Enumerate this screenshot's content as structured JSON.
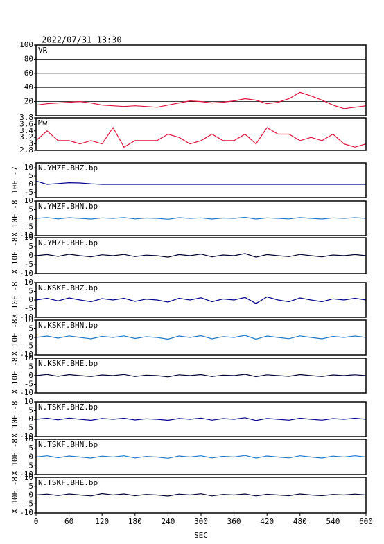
{
  "chart_data": [
    {
      "type": "line",
      "title": "2022/07/31 13:30",
      "label": "VR",
      "color": "#e0103c",
      "grid": true,
      "x": [
        0,
        20,
        40,
        60,
        80,
        100,
        120,
        140,
        160,
        180,
        200,
        220,
        240,
        260,
        280,
        300,
        320,
        340,
        360,
        380,
        400,
        420,
        440,
        460,
        480,
        500,
        520,
        540,
        560,
        580,
        600
      ],
      "values": [
        15,
        17,
        18,
        19,
        20,
        18,
        15,
        14,
        13,
        14,
        13,
        12,
        15,
        18,
        21,
        20,
        18,
        19,
        21,
        24,
        22,
        17,
        19,
        24,
        33,
        28,
        22,
        15,
        10,
        12,
        14
      ],
      "xlim": [
        0,
        600
      ],
      "ylim": [
        0,
        100
      ],
      "yticks": [
        20,
        40,
        60,
        80,
        100
      ]
    },
    {
      "type": "line",
      "label": "Mw",
      "color": "#e0103c",
      "grid": false,
      "x": [
        0,
        20,
        40,
        60,
        80,
        100,
        120,
        140,
        160,
        180,
        200,
        220,
        240,
        260,
        280,
        300,
        320,
        340,
        360,
        380,
        400,
        420,
        440,
        460,
        480,
        500,
        520,
        540,
        560,
        580,
        600
      ],
      "values": [
        3.1,
        3.4,
        3.1,
        3.1,
        3.0,
        3.1,
        3.0,
        3.5,
        2.9,
        3.1,
        3.1,
        3.1,
        3.3,
        3.2,
        3.0,
        3.1,
        3.3,
        3.1,
        3.1,
        3.3,
        3.0,
        3.5,
        3.3,
        3.3,
        3.1,
        3.2,
        3.1,
        3.3,
        3.0,
        2.9,
        3.0
      ],
      "xlim": [
        0,
        600
      ],
      "ylim": [
        2.8,
        3.8
      ],
      "yticks": [
        2.8,
        3.0,
        3.2,
        3.4,
        3.6,
        3.8
      ]
    },
    {
      "type": "line",
      "label": "N.YMZF.BHZ.bp",
      "ylabel": "10E -7",
      "color": "#00008b",
      "grid": false,
      "x": [
        0,
        20,
        40,
        60,
        80,
        100,
        120,
        140,
        160,
        180,
        200,
        220,
        240,
        260,
        280,
        300,
        320,
        340,
        360,
        380,
        400,
        420,
        440,
        460,
        480,
        500,
        520,
        540,
        560,
        580,
        600
      ],
      "values": [
        2,
        0,
        0.5,
        1,
        0.8,
        0.3,
        0,
        0,
        0,
        0,
        0,
        0,
        0,
        0,
        0,
        0,
        0,
        0,
        0,
        0,
        0,
        0,
        0,
        0,
        0,
        0,
        0,
        0,
        0,
        0,
        0
      ],
      "xlim": [
        0,
        600
      ],
      "ylim": [
        -8,
        13
      ],
      "yticks": [
        -5,
        0,
        5,
        10
      ]
    },
    {
      "type": "line",
      "label": "N.YMZF.BHN.bp",
      "ylabel": "X 10E -8",
      "color": "#1e78c8",
      "grid": false,
      "x": [
        0,
        20,
        40,
        60,
        80,
        100,
        120,
        140,
        160,
        180,
        200,
        220,
        240,
        260,
        280,
        300,
        320,
        340,
        360,
        380,
        400,
        420,
        440,
        460,
        480,
        500,
        520,
        540,
        560,
        580,
        600
      ],
      "values": [
        0,
        0.5,
        -0.3,
        0.4,
        0,
        -0.4,
        0.3,
        0,
        0.5,
        -0.3,
        0.2,
        0,
        -0.5,
        0.4,
        0,
        0.3,
        -0.4,
        0.2,
        0,
        0.6,
        -0.4,
        0.3,
        0,
        -0.3,
        0.5,
        0,
        -0.4,
        0.3,
        0,
        0.4,
        0
      ],
      "xlim": [
        0,
        600
      ],
      "ylim": [
        -10,
        10
      ],
      "yticks": [
        -10,
        -5,
        0,
        5,
        10
      ]
    },
    {
      "type": "line",
      "label": "N.YMZF.BHE.bp",
      "ylabel": "X 10E -8",
      "color": "#000033",
      "grid": false,
      "x": [
        0,
        20,
        40,
        60,
        80,
        100,
        120,
        140,
        160,
        180,
        200,
        220,
        240,
        260,
        280,
        300,
        320,
        340,
        360,
        380,
        400,
        420,
        440,
        460,
        480,
        500,
        520,
        540,
        560,
        580,
        600
      ],
      "values": [
        0,
        0.6,
        -0.4,
        0.8,
        0,
        -0.6,
        0.5,
        0,
        0.7,
        -0.5,
        0.3,
        0,
        -0.8,
        0.6,
        0,
        0.9,
        -0.6,
        0.4,
        0,
        1.2,
        -0.8,
        0.6,
        0,
        -0.5,
        0.7,
        0,
        -0.6,
        0.4,
        0,
        0.6,
        0
      ],
      "xlim": [
        0,
        600
      ],
      "ylim": [
        -10,
        10
      ],
      "yticks": [
        -10,
        -5,
        0,
        5,
        10
      ]
    },
    {
      "type": "line",
      "label": "N.KSKF.BHZ.bp",
      "ylabel": "X 10E -8",
      "color": "#00008b",
      "grid": false,
      "x": [
        0,
        20,
        40,
        60,
        80,
        100,
        120,
        140,
        160,
        180,
        200,
        220,
        240,
        260,
        280,
        300,
        320,
        340,
        360,
        380,
        400,
        420,
        440,
        460,
        480,
        500,
        520,
        540,
        560,
        580,
        600
      ],
      "values": [
        0,
        1,
        -0.5,
        1.2,
        0,
        -1,
        0.8,
        0,
        1,
        -0.8,
        0.5,
        0,
        -1.2,
        1,
        0,
        1.3,
        -1,
        0.6,
        0,
        1.5,
        -2,
        1.8,
        0,
        -1,
        1.2,
        0,
        -1,
        0.7,
        0,
        1,
        0
      ],
      "xlim": [
        0,
        600
      ],
      "ylim": [
        -10,
        10
      ],
      "yticks": [
        -10,
        -5,
        0,
        5,
        10
      ]
    },
    {
      "type": "line",
      "label": "N.KSKF.BHN.bp",
      "ylabel": "X 10E -8",
      "color": "#1e78c8",
      "grid": false,
      "x": [
        0,
        20,
        40,
        60,
        80,
        100,
        120,
        140,
        160,
        180,
        200,
        220,
        240,
        260,
        280,
        300,
        320,
        340,
        360,
        380,
        400,
        420,
        440,
        460,
        480,
        500,
        520,
        540,
        560,
        580,
        600
      ],
      "values": [
        0,
        0.8,
        -0.4,
        0.9,
        0,
        -0.8,
        0.6,
        0,
        0.9,
        -0.6,
        0.4,
        0,
        -1,
        0.8,
        0,
        1,
        -0.8,
        0.5,
        0,
        1.2,
        -1,
        0.8,
        0,
        -0.7,
        0.9,
        0,
        -0.8,
        0.6,
        0,
        0.8,
        0
      ],
      "xlim": [
        0,
        600
      ],
      "ylim": [
        -10,
        10
      ],
      "yticks": [
        -10,
        -5,
        0,
        5,
        10
      ]
    },
    {
      "type": "line",
      "label": "N.KSKF.BHE.bp",
      "ylabel": "X 10E -8",
      "color": "#000033",
      "grid": false,
      "x": [
        0,
        20,
        40,
        60,
        80,
        100,
        120,
        140,
        160,
        180,
        200,
        220,
        240,
        260,
        280,
        300,
        320,
        340,
        360,
        380,
        400,
        420,
        440,
        460,
        480,
        500,
        520,
        540,
        560,
        580,
        600
      ],
      "values": [
        0,
        0.7,
        -0.4,
        0.6,
        0,
        -0.5,
        0.4,
        0,
        0.7,
        -0.5,
        0.3,
        0,
        -0.7,
        0.5,
        0,
        0.6,
        -0.5,
        0.3,
        0,
        0.8,
        -0.6,
        0.5,
        0,
        -0.4,
        0.6,
        0,
        -0.5,
        0.4,
        0,
        0.5,
        0
      ],
      "xlim": [
        0,
        600
      ],
      "ylim": [
        -10,
        10
      ],
      "yticks": [
        -10,
        -5,
        0,
        5,
        10
      ]
    },
    {
      "type": "line",
      "label": "N.TSKF.BHZ.bp",
      "ylabel": "X 10E -8",
      "color": "#00008b",
      "grid": false,
      "x": [
        0,
        20,
        40,
        60,
        80,
        100,
        120,
        140,
        160,
        180,
        200,
        220,
        240,
        260,
        280,
        300,
        320,
        340,
        360,
        380,
        400,
        420,
        440,
        460,
        480,
        500,
        520,
        540,
        560,
        580,
        600
      ],
      "values": [
        0,
        0.6,
        -0.3,
        0.7,
        0,
        -0.6,
        0.5,
        0,
        0.6,
        -0.4,
        0.3,
        0,
        -0.6,
        0.5,
        0,
        0.7,
        -0.5,
        0.4,
        0,
        0.9,
        -0.7,
        0.5,
        0,
        -0.5,
        0.6,
        0,
        -0.5,
        0.4,
        0,
        0.6,
        0
      ],
      "xlim": [
        0,
        600
      ],
      "ylim": [
        -10,
        10
      ],
      "yticks": [
        -10,
        -5,
        0,
        5,
        10
      ]
    },
    {
      "type": "line",
      "label": "N.TSKF.BHN.bp",
      "ylabel": "X 10E -8",
      "color": "#1e78c8",
      "grid": false,
      "x": [
        0,
        20,
        40,
        60,
        80,
        100,
        120,
        140,
        160,
        180,
        200,
        220,
        240,
        260,
        280,
        300,
        320,
        340,
        360,
        380,
        400,
        420,
        440,
        460,
        480,
        500,
        520,
        540,
        560,
        580,
        600
      ],
      "values": [
        0,
        0.7,
        -0.4,
        0.6,
        0,
        -0.6,
        0.5,
        0,
        0.7,
        -0.5,
        0.3,
        0,
        -0.7,
        0.6,
        0,
        0.7,
        -0.5,
        0.4,
        0,
        0.9,
        -0.6,
        0.6,
        0,
        -0.5,
        0.7,
        0,
        -0.6,
        0.5,
        0,
        0.7,
        0
      ],
      "xlim": [
        0,
        600
      ],
      "ylim": [
        -10,
        10
      ],
      "yticks": [
        -10,
        -5,
        0,
        5,
        10
      ]
    },
    {
      "type": "line",
      "label": "N.TSKF.BHE.bp",
      "ylabel": "X 10E -8",
      "color": "#000033",
      "grid": false,
      "x": [
        0,
        20,
        40,
        60,
        80,
        100,
        120,
        140,
        160,
        180,
        200,
        220,
        240,
        260,
        280,
        300,
        320,
        340,
        360,
        380,
        400,
        420,
        440,
        460,
        480,
        500,
        520,
        540,
        560,
        580,
        600
      ],
      "values": [
        0,
        0.5,
        -0.3,
        0.6,
        0,
        -0.5,
        0.8,
        0,
        0.6,
        -0.4,
        0.3,
        0,
        -0.6,
        0.5,
        0,
        0.7,
        -0.5,
        0.3,
        0,
        0.6,
        -0.5,
        0.4,
        0,
        -0.4,
        0.6,
        0,
        -0.4,
        0.3,
        0,
        0.5,
        0
      ],
      "xlim": [
        0,
        600
      ],
      "ylim": [
        -10,
        10
      ],
      "yticks": [
        -10,
        -5,
        0,
        5,
        10
      ],
      "xticks": [
        0,
        60,
        120,
        180,
        240,
        300,
        360,
        420,
        480,
        540,
        600
      ],
      "xlabel": "SEC"
    }
  ]
}
